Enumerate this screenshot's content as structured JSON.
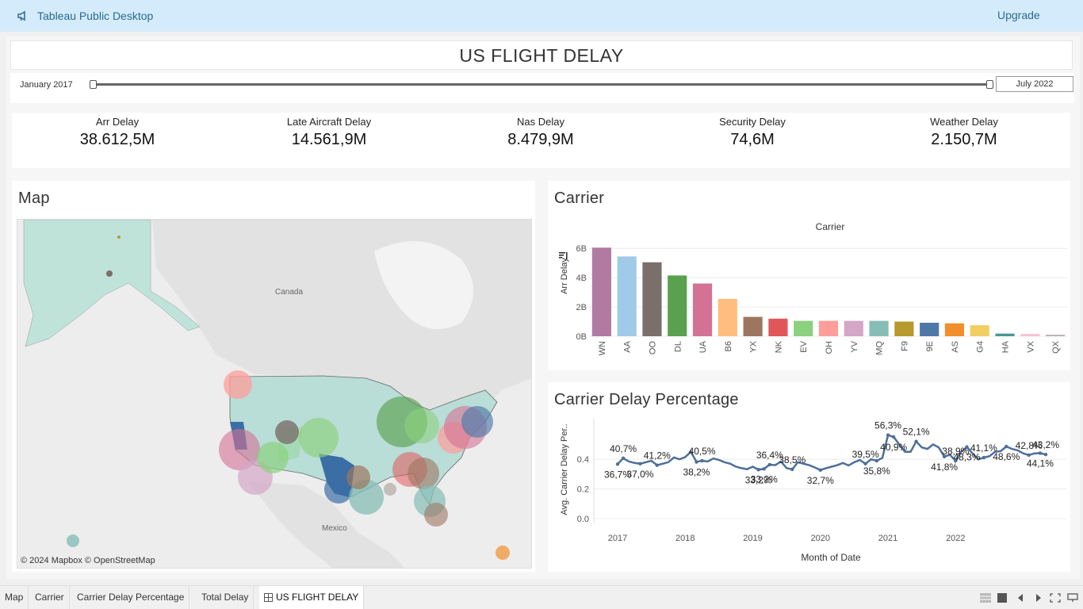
{
  "app": {
    "title": "Tableau Public Desktop",
    "upgrade_label": "Upgrade"
  },
  "dashboard": {
    "title": "US FLIGHT DELAY",
    "date_range": {
      "start": "January 2017",
      "end": "July 2022"
    }
  },
  "kpis": [
    {
      "label": "Arr Delay",
      "value": "38.612,5M"
    },
    {
      "label": "Late Aircraft Delay",
      "value": "14.561,9M"
    },
    {
      "label": "Nas Delay",
      "value": "8.479,9M"
    },
    {
      "label": "Security Delay",
      "value": "74,6M"
    },
    {
      "label": "Weather Delay",
      "value": "2.150,7M"
    }
  ],
  "map_panel": {
    "title": "Map",
    "labels": {
      "canada": "Canada",
      "mexico": "Mexico"
    },
    "attribution": "© 2024 Mapbox © OpenStreetMap"
  },
  "carrier_panel": {
    "title": "Carrier",
    "sort_icon": "sort-descending-icon"
  },
  "cdp_panel": {
    "title": "Carrier Delay Percentage"
  },
  "chart_data": [
    {
      "type": "bar",
      "title": "Carrier",
      "xlabel": "",
      "ylabel": "Arr Delay",
      "categories": [
        "WN",
        "AA",
        "OO",
        "DL",
        "UA",
        "B6",
        "YX",
        "NK",
        "EV",
        "OH",
        "YV",
        "MQ",
        "F9",
        "9E",
        "AS",
        "G4",
        "HA",
        "VX",
        "QX"
      ],
      "values": [
        6.05,
        5.45,
        5.05,
        4.15,
        3.6,
        2.55,
        1.32,
        1.2,
        1.05,
        1.05,
        1.05,
        1.05,
        1.0,
        0.92,
        0.88,
        0.75,
        0.18,
        0.15,
        0.1
      ],
      "colors": [
        "#b07aa1",
        "#a0cbe8",
        "#7b6f6b",
        "#59a14f",
        "#d37295",
        "#ffbe7d",
        "#9d7660",
        "#e15759",
        "#8cd17d",
        "#ff9d9a",
        "#d4a6c8",
        "#86bcb6",
        "#b6992d",
        "#4e79a7",
        "#f28e2b",
        "#f1ce63",
        "#499894",
        "#fabfd2",
        "#bab0ac"
      ],
      "yticks": [
        "0B",
        "2B",
        "4B",
        "6B"
      ],
      "ylim": [
        0,
        6.5
      ],
      "grid": true
    },
    {
      "type": "line",
      "title": "Carrier Delay Percentage",
      "xlabel": "Month of Date",
      "ylabel": "Avg. Carrier Delay Per..",
      "ylim": [
        0,
        0.62
      ],
      "yticks": [
        "0.0",
        "0.2",
        "0.4"
      ],
      "xticks": [
        "2017",
        "2018",
        "2019",
        "2020",
        "2021",
        "2022"
      ],
      "color": "#4e6f9a",
      "series": [
        {
          "values": [
            0.367,
            0.407,
            0.385,
            0.375,
            0.37,
            0.38,
            0.39,
            0.36,
            0.37,
            0.38,
            0.412,
            0.4,
            0.415,
            0.45,
            0.382,
            0.39,
            0.385,
            0.405,
            0.395,
            0.38,
            0.37,
            0.35,
            0.34,
            0.333,
            0.35,
            0.33,
            0.335,
            0.364,
            0.36,
            0.385,
            0.34,
            0.332,
            0.38,
            0.37,
            0.36,
            0.345,
            0.327,
            0.34,
            0.35,
            0.36,
            0.375,
            0.358,
            0.38,
            0.395,
            0.37,
            0.4,
            0.39,
            0.409,
            0.563,
            0.55,
            0.5,
            0.45,
            0.45,
            0.52,
            0.48,
            0.47,
            0.5,
            0.48,
            0.418,
            0.43,
            0.389,
            0.45,
            0.483,
            0.44,
            0.4,
            0.411,
            0.42,
            0.45,
            0.455,
            0.486,
            0.47,
            0.46,
            0.44,
            0.428,
            0.44,
            0.441,
            0.432
          ]
        }
      ],
      "data_labels": [
        "36,7%",
        "40,7%",
        "37,0%",
        "41,2%",
        "38,2%",
        "40,5%",
        "33,2%",
        "36,4%",
        "33,2%",
        "38,5%",
        "32,7%",
        "39,5%",
        "35,8%",
        "56,3%",
        "40,9%",
        "52,1%",
        "41,8%",
        "38,9%",
        "48,3%",
        "41,1%",
        "48,6%",
        "42,8%",
        "44,1%",
        "43,2%"
      ]
    }
  ],
  "tabs": [
    {
      "label": "Map",
      "active": false
    },
    {
      "label": "Carrier",
      "active": false
    },
    {
      "label": "Carrier Delay Percentage",
      "active": false
    },
    {
      "label": "Total Delay",
      "active": false
    },
    {
      "label": "US FLIGHT DELAY",
      "active": true
    }
  ]
}
